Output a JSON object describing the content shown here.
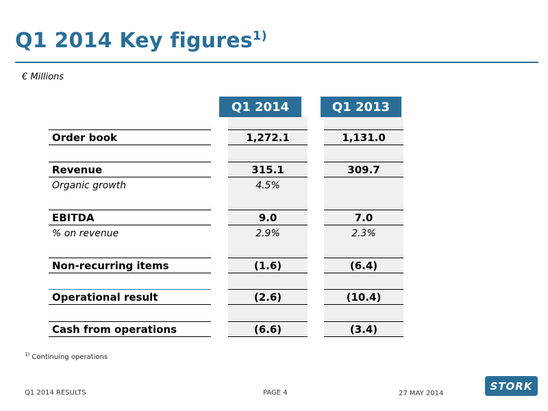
{
  "title": {
    "text": "Q1 2014 Key figures",
    "sup": "1)"
  },
  "units": "€ Millions",
  "columns": [
    "Q1 2014",
    "Q1 2013"
  ],
  "rows": [
    {
      "label": "Order book",
      "q1_2014": "1,272.1",
      "q1_2013": "1,131.0"
    },
    {
      "label": "Revenue",
      "q1_2014": "315.1",
      "q1_2013": "309.7"
    },
    {
      "label": "Organic growth",
      "q1_2014": "4.5%",
      "q1_2013": ""
    },
    {
      "label": "EBITDA",
      "q1_2014": "9.0",
      "q1_2013": "7.0"
    },
    {
      "label": "% on revenue",
      "q1_2014": "2.9%",
      "q1_2013": "2.3%"
    },
    {
      "label": "Non-recurring items",
      "q1_2014": "(1.6)",
      "q1_2013": "(6.4)"
    },
    {
      "label": "Operational result",
      "q1_2014": "(2.6)",
      "q1_2013": "(10.4)"
    },
    {
      "label": "Cash from operations",
      "q1_2014": "(6.6)",
      "q1_2013": "(3.4)"
    }
  ],
  "footnote": {
    "marker": "1)",
    "text": "Continuing operations"
  },
  "footer": {
    "left": "Q1 2014 RESULTS",
    "page": "PAGE 4",
    "date": "27 MAY 2014"
  },
  "logo": {
    "text": "STORK",
    "color": "#2a6e97"
  },
  "colors": {
    "accent": "#2a6e97",
    "column_shade": "#f0f0f0"
  }
}
